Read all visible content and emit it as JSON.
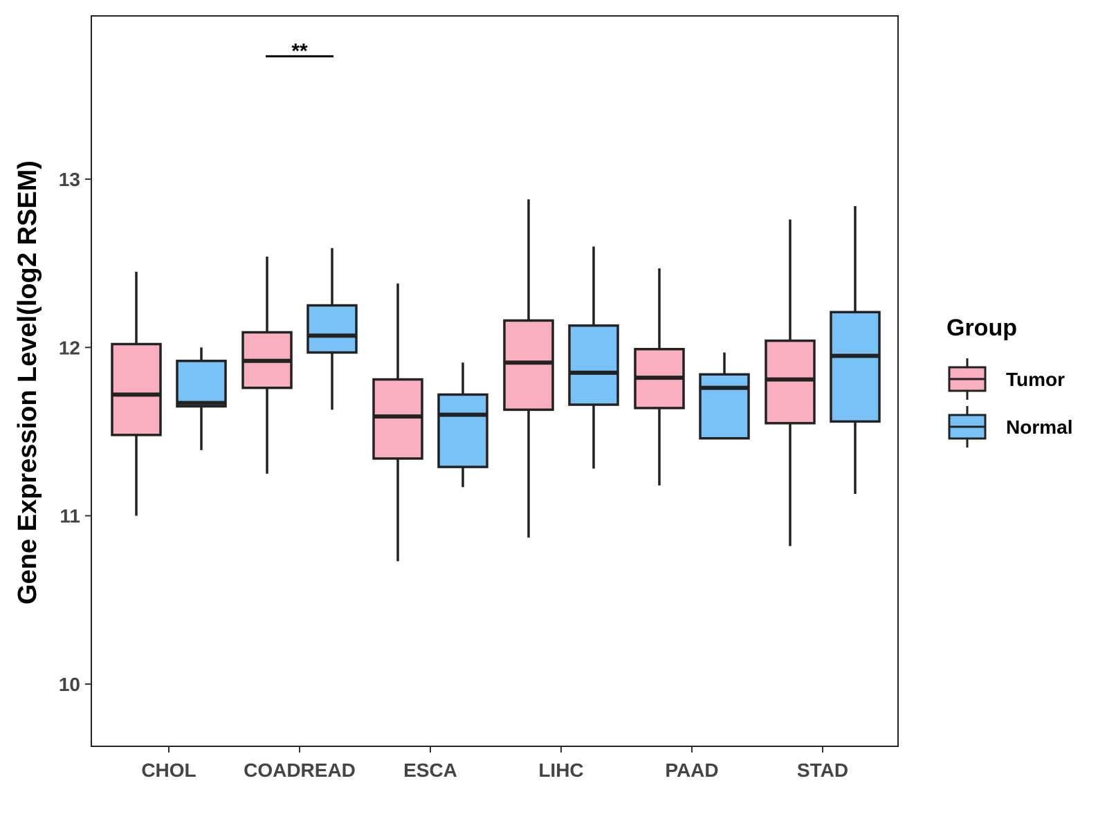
{
  "chart_data": {
    "type": "boxplot",
    "title": "",
    "xlabel": "",
    "ylabel": "Gene Expression Level(log2 RSEM)",
    "ylim": [
      9.63,
      13.97
    ],
    "yticks": [
      10,
      11,
      12,
      13
    ],
    "categories": [
      "CHOL",
      "COADREAD",
      "ESCA",
      "LIHC",
      "PAAD",
      "STAD"
    ],
    "legend": {
      "title": "Group",
      "position": "right"
    },
    "series": [
      {
        "name": "Tumor",
        "color": "#F9AFC0",
        "boxes": [
          {
            "category": "CHOL",
            "min": 11.0,
            "q1": 11.48,
            "median": 11.72,
            "q3": 12.02,
            "max": 12.45
          },
          {
            "category": "COADREAD",
            "min": 11.25,
            "q1": 11.76,
            "median": 11.92,
            "q3": 12.09,
            "max": 12.54
          },
          {
            "category": "ESCA",
            "min": 10.73,
            "q1": 11.34,
            "median": 11.59,
            "q3": 11.81,
            "max": 12.38
          },
          {
            "category": "LIHC",
            "min": 10.87,
            "q1": 11.63,
            "median": 11.91,
            "q3": 12.16,
            "max": 12.88
          },
          {
            "category": "PAAD",
            "min": 11.18,
            "q1": 11.64,
            "median": 11.82,
            "q3": 11.99,
            "max": 12.47
          },
          {
            "category": "STAD",
            "min": 10.82,
            "q1": 11.55,
            "median": 11.81,
            "q3": 12.04,
            "max": 12.76
          }
        ]
      },
      {
        "name": "Normal",
        "color": "#79C2F7",
        "boxes": [
          {
            "category": "CHOL",
            "min": 11.39,
            "q1": 11.65,
            "median": 11.67,
            "q3": 11.92,
            "max": 12.0
          },
          {
            "category": "COADREAD",
            "min": 11.63,
            "q1": 11.97,
            "median": 12.07,
            "q3": 12.25,
            "max": 12.59
          },
          {
            "category": "ESCA",
            "min": 11.17,
            "q1": 11.29,
            "median": 11.6,
            "q3": 11.72,
            "max": 11.91
          },
          {
            "category": "LIHC",
            "min": 11.28,
            "q1": 11.66,
            "median": 11.85,
            "q3": 12.13,
            "max": 12.6
          },
          {
            "category": "PAAD",
            "min": 11.46,
            "q1": 11.46,
            "median": 11.76,
            "q3": 11.84,
            "max": 11.97
          },
          {
            "category": "STAD",
            "min": 11.13,
            "q1": 11.56,
            "median": 11.95,
            "q3": 12.21,
            "max": 12.84
          }
        ]
      }
    ],
    "annotations": [
      {
        "category": "COADREAD",
        "label": "**",
        "y": 13.73
      }
    ]
  }
}
